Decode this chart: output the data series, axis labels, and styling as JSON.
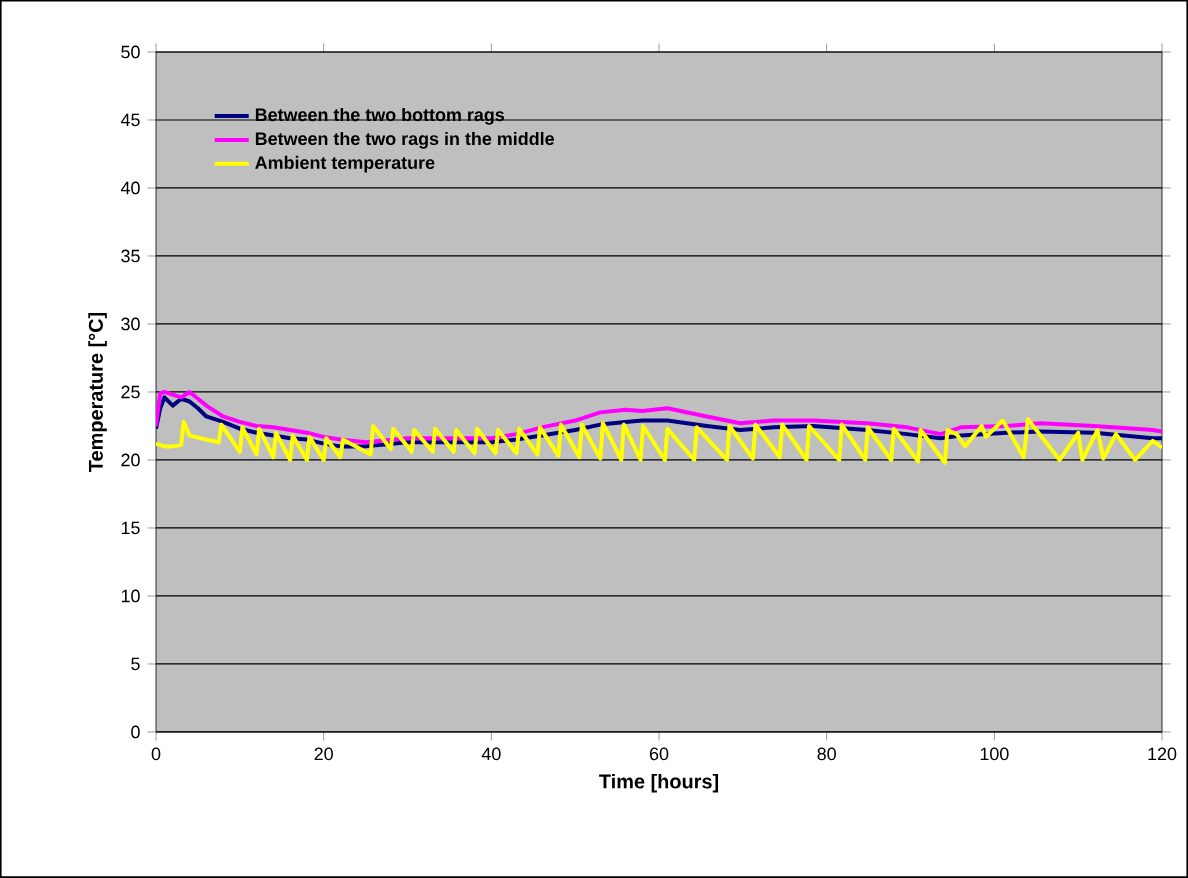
{
  "chart_data": {
    "type": "line",
    "xlabel": "Time [hours]",
    "ylabel": "Temperature [°C]",
    "xlim": [
      0,
      120
    ],
    "xticks": [
      0,
      20,
      40,
      60,
      80,
      100,
      120
    ],
    "ylim": [
      0,
      50
    ],
    "yticks": [
      0,
      5,
      10,
      15,
      20,
      25,
      30,
      35,
      40,
      45,
      50
    ],
    "grid": "y",
    "legend": "top left",
    "marker": "none",
    "line_style": "solid",
    "series": [
      {
        "name": "Between the two bottom rags",
        "color": "#000080",
        "x": [
          0,
          0.5,
          1,
          2,
          3,
          4,
          5,
          6,
          8,
          10,
          12,
          14,
          16,
          18,
          20,
          22,
          25,
          30,
          35,
          40,
          43,
          46,
          50,
          53,
          56,
          58,
          61,
          65.7,
          69.7,
          73.7,
          78.4,
          84.8,
          89.6,
          93.6,
          96,
          101.5,
          105.5,
          111.9,
          118.9,
          120
        ],
        "values": [
          22.3,
          23.8,
          24.6,
          24.0,
          24.5,
          24.3,
          23.8,
          23.2,
          22.8,
          22.3,
          22.0,
          21.8,
          21.6,
          21.5,
          21.2,
          21.0,
          21.0,
          21.3,
          21.3,
          21.3,
          21.5,
          21.8,
          22.2,
          22.6,
          22.8,
          22.9,
          22.9,
          22.5,
          22.2,
          22.4,
          22.5,
          22.2,
          21.9,
          21.6,
          21.8,
          22.0,
          22.1,
          22.0,
          21.6,
          21.6
        ]
      },
      {
        "name": "Between the two rags in the middle",
        "color": "#ff00ff",
        "x": [
          0,
          0.5,
          1,
          2,
          3,
          4,
          5,
          6,
          8,
          10,
          12,
          14,
          16,
          18,
          20,
          22,
          25,
          30,
          35,
          40,
          43,
          46,
          50,
          53,
          56,
          58,
          61,
          65.7,
          69.7,
          73.7,
          78.4,
          84.8,
          89.6,
          93.6,
          96,
          101.5,
          105.5,
          111.9,
          118.9,
          120
        ],
        "values": [
          22.5,
          24.9,
          25.0,
          24.8,
          24.6,
          25.0,
          24.5,
          24.0,
          23.2,
          22.8,
          22.5,
          22.4,
          22.2,
          22.0,
          21.7,
          21.5,
          21.3,
          21.6,
          21.6,
          21.6,
          21.9,
          22.4,
          22.9,
          23.5,
          23.7,
          23.6,
          23.8,
          23.2,
          22.7,
          22.9,
          22.9,
          22.7,
          22.4,
          21.9,
          22.4,
          22.5,
          22.7,
          22.5,
          22.2,
          22.1
        ]
      },
      {
        "name": "Ambient temperature",
        "color": "#ffff00",
        "x": [
          0,
          1,
          2,
          3,
          3.3,
          4,
          6,
          7.5,
          7.8,
          10,
          10.3,
          12,
          12.3,
          14,
          14.3,
          16,
          16.3,
          18,
          18.3,
          20,
          20.3,
          22,
          22.3,
          25.6,
          25.9,
          28,
          28.3,
          30.5,
          30.8,
          33,
          33.3,
          35.5,
          35.8,
          38,
          38.3,
          40.5,
          40.8,
          43,
          43.3,
          45.5,
          45.8,
          48,
          48.3,
          50.5,
          50.8,
          53,
          53.3,
          55.5,
          55.8,
          57.8,
          58.1,
          60.7,
          61,
          64.2,
          64.5,
          68.1,
          68.4,
          71.2,
          71.5,
          74.4,
          74.7,
          77.6,
          77.9,
          81.5,
          81.8,
          84.6,
          84.9,
          87.7,
          88,
          90.9,
          91.2,
          94.1,
          94.4,
          95.5,
          96.5,
          98.5,
          99,
          101,
          103.5,
          104,
          107.8,
          110,
          110.5,
          112.3,
          113,
          114.5,
          116.8,
          118.9,
          120
        ],
        "values": [
          21.2,
          21.0,
          21.0,
          21.1,
          22.8,
          21.8,
          21.5,
          21.3,
          22.6,
          20.6,
          22.4,
          20.4,
          22.3,
          20.2,
          22.0,
          20.0,
          21.8,
          20.0,
          21.7,
          20.0,
          21.6,
          20.2,
          21.5,
          20.4,
          22.5,
          20.8,
          22.3,
          20.6,
          22.2,
          20.6,
          22.3,
          20.6,
          22.2,
          20.5,
          22.3,
          20.5,
          22.2,
          20.5,
          22.3,
          20.4,
          22.4,
          20.3,
          22.6,
          20.2,
          22.6,
          20.1,
          22.7,
          20.0,
          22.6,
          20.0,
          22.5,
          20.0,
          22.3,
          20.0,
          22.4,
          20.0,
          22.5,
          20.1,
          22.6,
          20.2,
          22.6,
          20.0,
          22.5,
          20.0,
          22.6,
          20.0,
          22.4,
          20.0,
          22.3,
          19.9,
          22.2,
          19.8,
          22.2,
          21.9,
          21.0,
          22.5,
          21.7,
          22.9,
          20.2,
          23.0,
          20.0,
          22.0,
          20.0,
          22.2,
          20.1,
          21.9,
          20.0,
          21.4,
          20.9
        ]
      }
    ]
  }
}
